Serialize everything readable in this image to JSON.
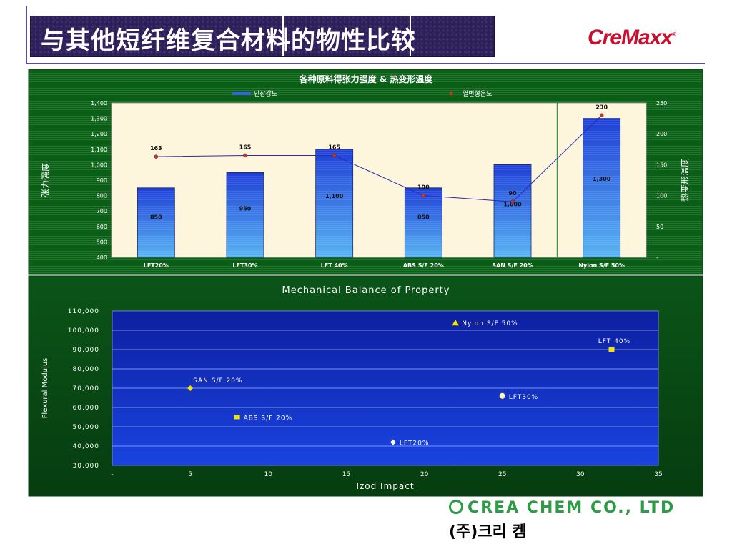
{
  "header": {
    "title": "与其他短纤维复合材料的物性比较",
    "logo_text": "CreMaxx",
    "logo_mark": "®"
  },
  "footer": {
    "company_en": "CREA CHEM CO., LTD",
    "company_kr": "(주)크리 켐",
    "company_icon": "swirl-logo-icon"
  },
  "colors": {
    "chart_bg_green": "#0f5c1a",
    "bar_blue": "#2f63e8",
    "plot_cream": "#fdf5dc",
    "plot_navy": "#1436c8",
    "marker_yellow": "#f5e400",
    "line_navy": "#2a2ab0",
    "brand_red": "#c8102e",
    "brand_green": "#2e9c46"
  },
  "chart_data": [
    {
      "type": "bar",
      "title": "各种原料得张力强度 & 热变形温度",
      "ylabel": "张力强度",
      "y2label": "热变形温度",
      "categories": [
        "LFT20%",
        "LFT30%",
        "LFT 40%",
        "ABS S/F  20%",
        "SAN S/F 20%",
        "Nylon S/F 50%"
      ],
      "ylim": [
        400,
        1400
      ],
      "y_ticks": [
        "400",
        "500",
        "600",
        "700",
        "800",
        "900",
        "1,000",
        "1,100",
        "1,200",
        "1,300",
        "1,400"
      ],
      "y2lim": [
        0,
        250
      ],
      "y2_ticks": [
        "-",
        "50",
        "100",
        "150",
        "200",
        "250"
      ],
      "legend_position": "top",
      "series": [
        {
          "name": "인장강도",
          "kind": "bar",
          "axis": "left",
          "values": [
            850,
            950,
            1100,
            850,
            1000,
            1300
          ],
          "labels": [
            "850",
            "950",
            "1,100",
            "850",
            "1,000",
            "1,300"
          ]
        },
        {
          "name": "열변형온도",
          "kind": "line",
          "axis": "right",
          "values": [
            163,
            165,
            165,
            100,
            90,
            230
          ],
          "labels": [
            "163",
            "165",
            "165",
            "100",
            "90",
            "230"
          ]
        }
      ]
    },
    {
      "type": "scatter",
      "title": "Mechanical Balance of Property",
      "xlabel": "Izod Impact",
      "ylabel": "Flexural Modulus",
      "xlim": [
        0,
        35
      ],
      "ylim": [
        30000,
        110000
      ],
      "x_ticks": [
        "-",
        "5",
        "10",
        "15",
        "20",
        "25",
        "30",
        "35"
      ],
      "y_ticks": [
        "30,000",
        "40,000",
        "50,000",
        "60,000",
        "70,000",
        "80,000",
        "90,000",
        "100,000",
        "110,000"
      ],
      "grid": true,
      "points": [
        {
          "label": "LFT20%",
          "x": 18,
          "y": 42000,
          "marker": "diamond",
          "color": "#ffffff"
        },
        {
          "label": "LFT30%",
          "x": 25,
          "y": 66000,
          "marker": "circle",
          "color": "#fff8b0"
        },
        {
          "label": "LFT 40%",
          "x": 32,
          "y": 90000,
          "marker": "square",
          "color": "#f5e400"
        },
        {
          "label": "ABS S/F  20%",
          "x": 8,
          "y": 55000,
          "marker": "square",
          "color": "#f5e400"
        },
        {
          "label": "SAN S/F 20%",
          "x": 5,
          "y": 70000,
          "marker": "diamond",
          "color": "#f5e400"
        },
        {
          "label": "Nylon S/F 50%",
          "x": 22,
          "y": 104000,
          "marker": "triangle",
          "color": "#f5e400"
        }
      ]
    }
  ]
}
